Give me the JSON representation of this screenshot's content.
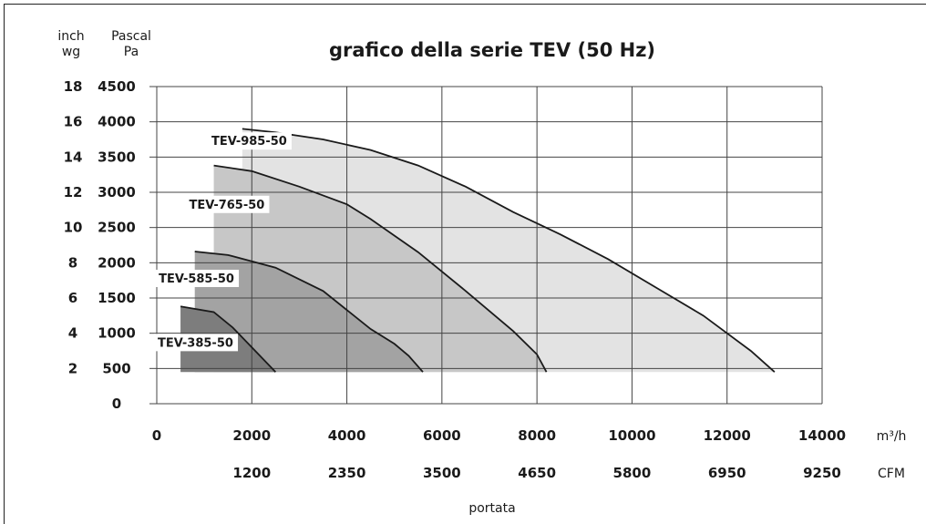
{
  "chart_data": {
    "type": "area",
    "title": "grafico della serie TEV (50 Hz)",
    "left_axis_headers": {
      "inchwg_line1": "inch",
      "inchwg_line2": "wg",
      "pa_line1": "Pascal",
      "pa_line2": "Pa"
    },
    "y_ticks_pa": [
      "4500",
      "4000",
      "3500",
      "3000",
      "2500",
      "2000",
      "1500",
      "1000",
      "500",
      "0"
    ],
    "y_ticks_inchwg": [
      "18",
      "16",
      "14",
      "12",
      "10",
      "8",
      "6",
      "4",
      "2"
    ],
    "x_ticks_m3h": [
      "0",
      "2000",
      "4000",
      "6000",
      "8000",
      "10000",
      "12000",
      "14000"
    ],
    "x_ticks_cfm": [
      "1200",
      "2350",
      "3500",
      "4650",
      "5800",
      "6950",
      "9250"
    ],
    "x_unit_m3h": "m³/h",
    "x_unit_cfm": "CFM",
    "xlabel": "portata",
    "xlim": [
      0,
      14000
    ],
    "ylim": [
      0,
      4500
    ],
    "grid": true,
    "series": [
      {
        "name": "TEV-985-50",
        "color": "#e3e3e3",
        "x": [
          1800,
          2500,
          3500,
          4500,
          5500,
          6500,
          7500,
          8500,
          9500,
          10500,
          11500,
          12500,
          13000
        ],
        "y": [
          3900,
          3850,
          3750,
          3600,
          3380,
          3080,
          2720,
          2400,
          2050,
          1650,
          1250,
          750,
          450
        ]
      },
      {
        "name": "TEV-765-50",
        "color": "#c7c7c7",
        "x": [
          1200,
          2000,
          3000,
          4000,
          4500,
          5500,
          6500,
          7500,
          8000,
          8200
        ],
        "y": [
          3380,
          3300,
          3080,
          2830,
          2620,
          2150,
          1600,
          1030,
          700,
          450
        ]
      },
      {
        "name": "TEV-585-50",
        "color": "#a3a3a3",
        "x": [
          800,
          1500,
          2500,
          3500,
          4500,
          5000,
          5300,
          5600
        ],
        "y": [
          2160,
          2110,
          1930,
          1600,
          1060,
          850,
          680,
          450
        ]
      },
      {
        "name": "TEV-385-50",
        "color": "#7d7d7d",
        "x": [
          500,
          1200,
          1600,
          2000,
          2500
        ],
        "y": [
          1380,
          1300,
          1080,
          800,
          450
        ]
      }
    ]
  }
}
